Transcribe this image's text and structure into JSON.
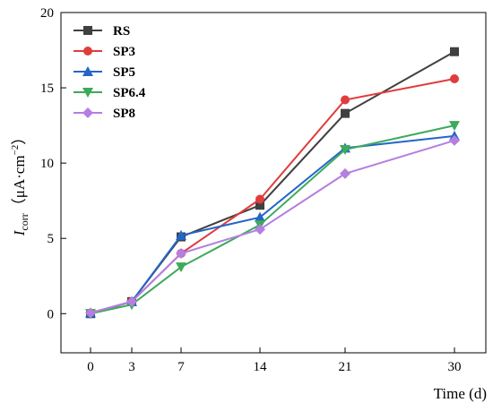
{
  "chart_data": {
    "type": "line",
    "x": [
      0,
      3,
      7,
      14,
      21,
      30
    ],
    "x_tick_labels": [
      "0",
      "3",
      "7",
      "14",
      "21",
      "30"
    ],
    "xlabel": "Time (d)",
    "ylabel": {
      "main": "I",
      "sub": "corr",
      "paren_open": "（",
      "unit": "μA·cm",
      "sup": "−2",
      "paren_close": "）"
    },
    "ylim": [
      -2.6,
      20
    ],
    "y_ticks": [
      0,
      5,
      10,
      15,
      20
    ],
    "legend_position": "top-left",
    "grid": false,
    "series": [
      {
        "name": "RS",
        "color": "#404040",
        "marker": "square",
        "values": [
          0.0,
          0.8,
          5.1,
          7.2,
          13.3,
          17.4
        ]
      },
      {
        "name": "SP3",
        "color": "#e03c3c",
        "marker": "circle",
        "values": [
          0.05,
          0.8,
          4.0,
          7.6,
          14.2,
          15.6
        ]
      },
      {
        "name": "SP5",
        "color": "#2466c8",
        "marker": "triangle-up",
        "values": [
          0.05,
          0.8,
          5.2,
          6.4,
          11.0,
          11.8
        ]
      },
      {
        "name": "SP6.4",
        "color": "#3caa5a",
        "marker": "triangle-down",
        "values": [
          0.0,
          0.6,
          3.1,
          5.9,
          10.9,
          12.5
        ]
      },
      {
        "name": "SP8",
        "color": "#b47fe0",
        "marker": "diamond",
        "values": [
          0.05,
          0.8,
          4.0,
          5.6,
          9.3,
          11.5
        ]
      }
    ]
  }
}
